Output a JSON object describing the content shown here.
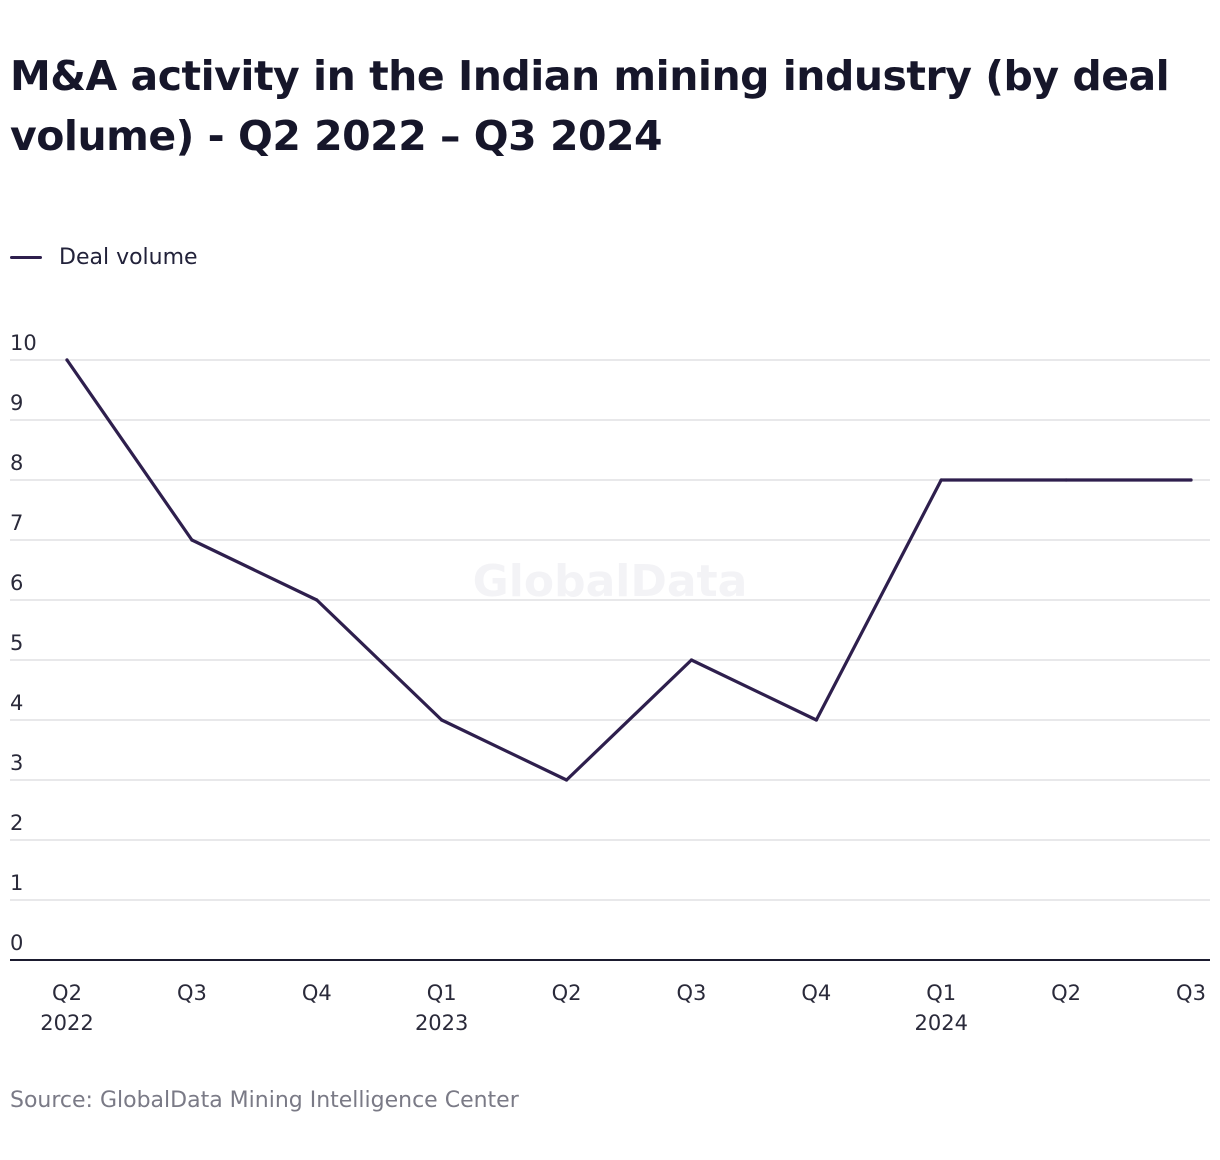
{
  "chart_data": {
    "type": "line",
    "title": "M&A activity in the Indian mining industry (by deal volume) - Q2 2022 – Q3 2024",
    "source": "Source: GlobalData Mining Intelligence Center",
    "watermark": "GlobalData",
    "categories": [
      {
        "quarter": "Q2",
        "year": "2022"
      },
      {
        "quarter": "Q3",
        "year": ""
      },
      {
        "quarter": "Q4",
        "year": ""
      },
      {
        "quarter": "Q1",
        "year": "2023"
      },
      {
        "quarter": "Q2",
        "year": ""
      },
      {
        "quarter": "Q3",
        "year": ""
      },
      {
        "quarter": "Q4",
        "year": ""
      },
      {
        "quarter": "Q1",
        "year": "2024"
      },
      {
        "quarter": "Q2",
        "year": ""
      },
      {
        "quarter": "Q3",
        "year": ""
      }
    ],
    "series": [
      {
        "name": "Deal volume",
        "color": "#2e1f4d",
        "values": [
          10,
          7,
          6,
          4,
          3,
          5,
          4,
          8,
          8,
          8
        ]
      }
    ],
    "ylim": [
      0,
      10
    ],
    "yticks": [
      0,
      1,
      2,
      3,
      4,
      5,
      6,
      7,
      8,
      9,
      10
    ],
    "grid": true,
    "legend_position": "top-left",
    "xlabel": "",
    "ylabel": ""
  }
}
